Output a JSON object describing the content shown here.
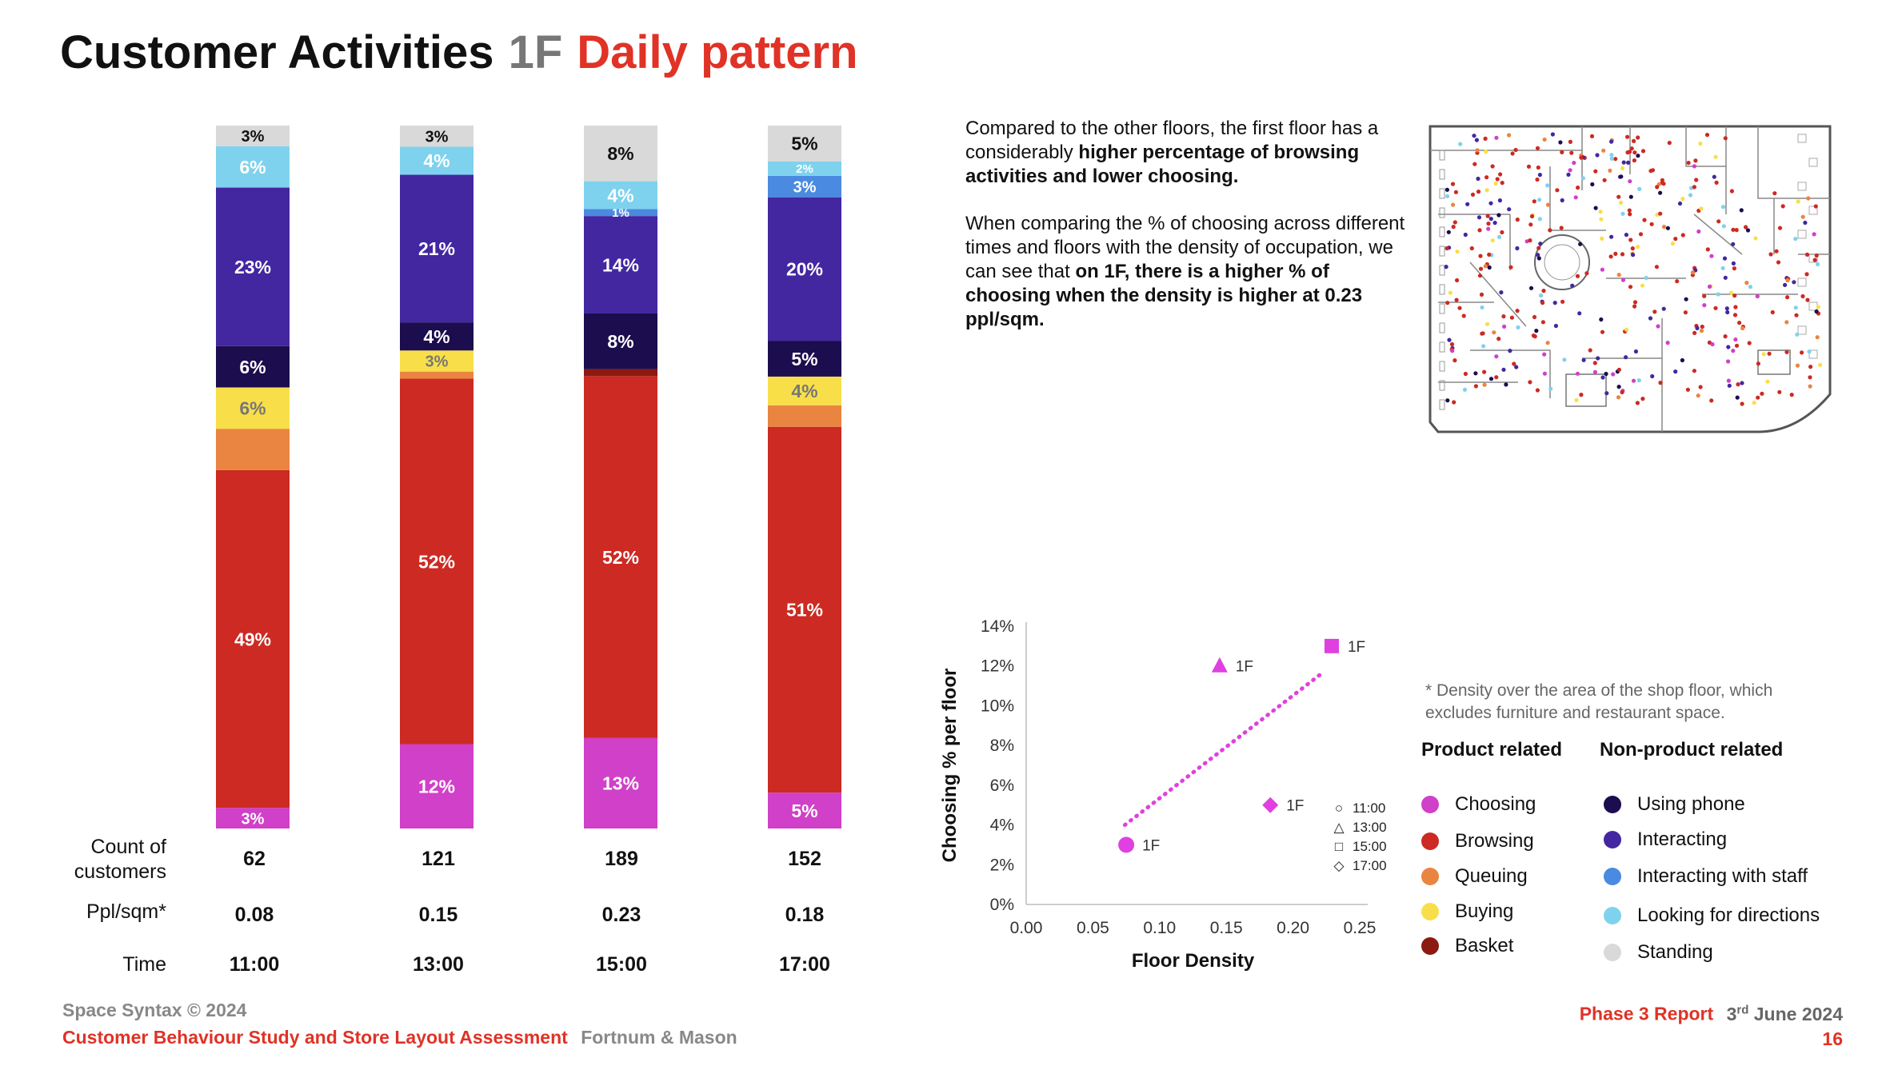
{
  "title": {
    "main": "Customer Activities",
    "floor": "1F",
    "sub": "Daily pattern"
  },
  "row_labels": {
    "count": "Count of customers",
    "density": "Ppl/sqm*",
    "time": "Time"
  },
  "columns": [
    {
      "count": "62",
      "density": "0.08",
      "time": "11:00"
    },
    {
      "count": "121",
      "density": "0.15",
      "time": "13:00"
    },
    {
      "count": "189",
      "density": "0.23",
      "time": "15:00"
    },
    {
      "count": "152",
      "density": "0.18",
      "time": "17:00"
    }
  ],
  "description": {
    "p1_normal": "Compared to the other floors, the first floor has a considerably ",
    "p1_bold": "higher percentage of browsing activities and lower choosing.",
    "p2_normal": "When comparing the % of choosing across different times and floors with the density of occupation, we can see that ",
    "p2_bold": "on 1F, there is a higher % of choosing when the density is higher at 0.23 ppl/sqm."
  },
  "density_note": "* Density over the area of the shop floor, which excludes furniture and  restaurant space.",
  "legend": {
    "product_title": "Product related",
    "nonproduct_title": "Non-product related",
    "product": [
      {
        "label": "Choosing",
        "color": "#d040c8"
      },
      {
        "label": "Browsing",
        "color": "#cc2a22"
      },
      {
        "label": "Queuing",
        "color": "#e98540"
      },
      {
        "label": "Buying",
        "color": "#f8df4a"
      },
      {
        "label": "Basket",
        "color": "#8c1a10"
      }
    ],
    "nonproduct": [
      {
        "label": "Using phone",
        "color": "#1c0d4e"
      },
      {
        "label": "Interacting",
        "color": "#4327a0"
      },
      {
        "label": "Interacting with staff",
        "color": "#4a8ae0"
      },
      {
        "label": "Looking for directions",
        "color": "#7fd2ee"
      },
      {
        "label": "Standing",
        "color": "#d9d9d9"
      }
    ]
  },
  "chart_data": [
    {
      "type": "bar",
      "stacked": true,
      "title": "Customer Activities 1F Daily pattern",
      "categories": [
        "11:00",
        "13:00",
        "15:00",
        "17:00"
      ],
      "ylim": [
        0,
        100
      ],
      "series": [
        {
          "name": "Choosing",
          "color": "#d040c8",
          "values": [
            3,
            12,
            13,
            5
          ],
          "labels": [
            "3%",
            "12%",
            "13%",
            "5%"
          ],
          "label_color": "#ffffff"
        },
        {
          "name": "Browsing",
          "color": "#cc2a22",
          "values": [
            49,
            52,
            52,
            51
          ],
          "labels": [
            "49%",
            "52%",
            "52%",
            "51%"
          ],
          "label_color": "#ffffff"
        },
        {
          "name": "Basket",
          "color": "#8c1a10",
          "values": [
            0,
            0,
            1,
            0
          ],
          "labels": [
            "",
            "",
            "",
            ""
          ],
          "label_color": "#ffffff"
        },
        {
          "name": "Queuing",
          "color": "#e98540",
          "values": [
            6,
            1,
            0,
            3
          ],
          "labels": [
            "",
            "",
            "",
            ""
          ],
          "label_color": "#ffffff"
        },
        {
          "name": "Buying",
          "color": "#f8df4a",
          "values": [
            6,
            3,
            0,
            4
          ],
          "labels": [
            "6%",
            "3%",
            "",
            "4%"
          ],
          "label_color": "#777777"
        },
        {
          "name": "Using phone",
          "color": "#1c0d4e",
          "values": [
            6,
            4,
            8,
            5
          ],
          "labels": [
            "6%",
            "4%",
            "8%",
            "5%"
          ],
          "label_color": "#ffffff"
        },
        {
          "name": "Interacting",
          "color": "#4327a0",
          "values": [
            23,
            21,
            14,
            20
          ],
          "labels": [
            "23%",
            "21%",
            "14%",
            "20%"
          ],
          "label_color": "#ffffff"
        },
        {
          "name": "Interacting with staff",
          "color": "#4a8ae0",
          "values": [
            0,
            0,
            1,
            3
          ],
          "labels": [
            "",
            "",
            "1%",
            "3%"
          ],
          "label_color": "#ffffff"
        },
        {
          "name": "Looking for directions",
          "color": "#7fd2ee",
          "values": [
            6,
            4,
            4,
            2
          ],
          "labels": [
            "6%",
            "4%",
            "4%",
            "2%"
          ],
          "label_color": "#ffffff"
        },
        {
          "name": "Standing",
          "color": "#d9d9d9",
          "values": [
            3,
            3,
            8,
            5
          ],
          "labels": [
            "3%",
            "3%",
            "8%",
            "5%"
          ],
          "label_color": "#111111"
        }
      ]
    },
    {
      "type": "scatter",
      "xlabel": "Floor Density",
      "ylabel": "Choosing % per floor",
      "xlim": [
        0,
        0.25
      ],
      "ylim": [
        0,
        14
      ],
      "xticks": [
        "0.00",
        "0.05",
        "0.10",
        "0.15",
        "0.20",
        "0.25"
      ],
      "yticks": [
        "0%",
        "2%",
        "4%",
        "6%",
        "8%",
        "10%",
        "12%",
        "14%"
      ],
      "color": "#e040e0",
      "points": [
        {
          "x": 0.075,
          "y": 3,
          "label": "1F",
          "time": "11:00",
          "marker": "circle"
        },
        {
          "x": 0.145,
          "y": 12,
          "label": "1F",
          "time": "13:00",
          "marker": "triangle"
        },
        {
          "x": 0.229,
          "y": 13,
          "label": "1F",
          "time": "15:00",
          "marker": "square"
        },
        {
          "x": 0.183,
          "y": 5,
          "label": "1F",
          "time": "17:00",
          "marker": "diamond"
        }
      ],
      "trendline": {
        "from": [
          0.074,
          4
        ],
        "to": [
          0.223,
          11.7
        ]
      },
      "marker_legend": [
        {
          "symbol": "○",
          "time": "11:00"
        },
        {
          "symbol": "△",
          "time": "13:00"
        },
        {
          "symbol": "□",
          "time": "15:00"
        },
        {
          "symbol": "◇",
          "time": "17:00"
        }
      ]
    }
  ],
  "footer": {
    "copyright": "Space Syntax © 2024",
    "study": "Customer Behaviour Study and Store Layout Assessment",
    "client": "Fortnum & Mason",
    "report": "Phase 3 Report",
    "date_day": "3",
    "date_sup": "rd",
    "date_rest": " June 2024",
    "page": "16"
  }
}
